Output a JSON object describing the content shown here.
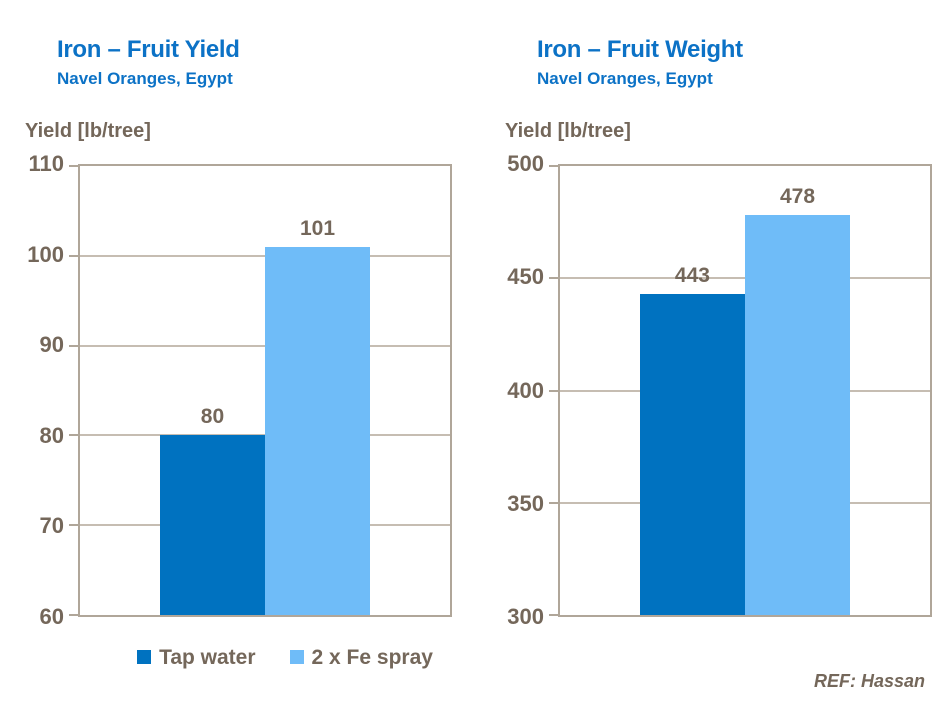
{
  "chart_data": [
    {
      "type": "bar",
      "title": "Iron – Fruit Yield",
      "subtitle": "Navel Oranges, Egypt",
      "ylabel": "Yield [lb/tree]",
      "xlabel": "",
      "categories": [
        "Tap water",
        "2 x Fe spray"
      ],
      "values": [
        80,
        101
      ],
      "ylim": [
        60,
        110
      ],
      "yticks": [
        60,
        70,
        80,
        90,
        100,
        110
      ],
      "grid": true,
      "legend_position": "bottom"
    },
    {
      "type": "bar",
      "title": "Iron – Fruit Weight",
      "subtitle": "Navel Oranges, Egypt",
      "ylabel": "Yield [lb/tree]",
      "xlabel": "",
      "categories": [
        "Tap water",
        "2 x Fe spray"
      ],
      "values": [
        443,
        478
      ],
      "ylim": [
        300,
        500
      ],
      "yticks": [
        300,
        350,
        400,
        450,
        500
      ],
      "grid": true,
      "legend_position": "none"
    }
  ],
  "legend": {
    "items": [
      {
        "label": "Tap water",
        "color": "#0072c0"
      },
      {
        "label": "2 x Fe spray",
        "color": "#6fbcf8"
      }
    ]
  },
  "footer": {
    "ref": "REF: Hassan"
  },
  "colors": {
    "series": [
      "#0072c0",
      "#6fbcf8"
    ],
    "title_blue": "#0c72c6",
    "text_brown": "#74675a",
    "axis_border": "#b0a699",
    "gridline": "#c6bdb2",
    "background": "#ffffff"
  }
}
